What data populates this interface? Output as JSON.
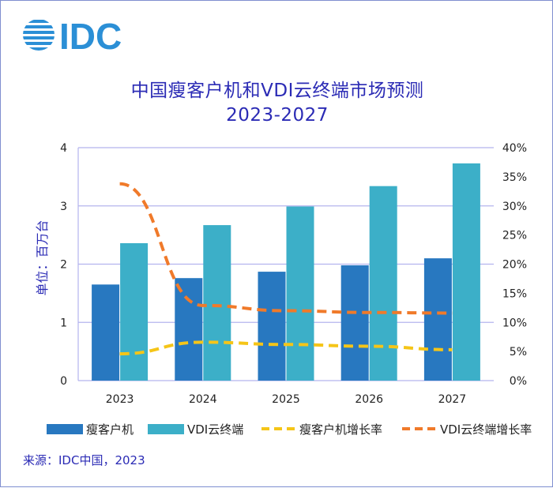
{
  "logo": {
    "text": "IDC",
    "color": "#2b8fd6"
  },
  "colors": {
    "thin_client_bar": "#2878c0",
    "vdi_bar": "#3cafc8",
    "thin_client_growth": "#f5c518",
    "vdi_growth": "#f07a2a",
    "title": "#2b2bb5",
    "grid": "#b4b4ee"
  },
  "chart_data": {
    "type": "bar",
    "title": "中国瘦客户机和VDI云终端市场预测",
    "subtitle": "2023-2027",
    "ylabel": "单位：百万台",
    "ylim": [
      0,
      4
    ],
    "yticks": [
      "0",
      "1",
      "2",
      "3",
      "4"
    ],
    "y2lim": [
      0,
      40
    ],
    "y2ticks": [
      "0%",
      "5%",
      "10%",
      "15%",
      "20%",
      "25%",
      "30%",
      "35%",
      "40%"
    ],
    "categories": [
      "2023",
      "2024",
      "2025",
      "2026",
      "2027"
    ],
    "series": [
      {
        "name": "瘦客户机",
        "type": "bar",
        "axis": "left",
        "values": [
          1.65,
          1.76,
          1.87,
          1.98,
          2.1
        ]
      },
      {
        "name": "VDI云终端",
        "type": "bar",
        "axis": "left",
        "values": [
          2.36,
          2.67,
          2.99,
          3.34,
          3.73
        ]
      },
      {
        "name": "瘦客户机增长率",
        "type": "line",
        "axis": "right",
        "style": "dashed",
        "values": [
          4.6,
          6.6,
          6.2,
          5.9,
          5.3
        ]
      },
      {
        "name": "VDI云终端增长率",
        "type": "line",
        "axis": "right",
        "style": "dashed",
        "values": [
          33.8,
          12.9,
          12.0,
          11.7,
          11.6
        ]
      }
    ],
    "legend_position": "bottom"
  },
  "source": "来源：IDC中国，2023"
}
